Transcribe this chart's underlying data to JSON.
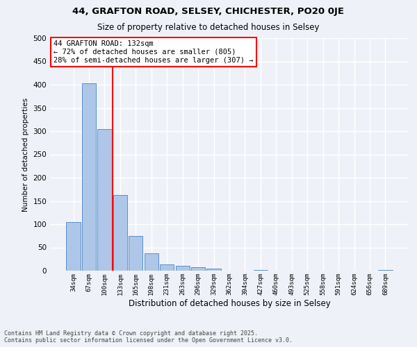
{
  "title_line1": "44, GRAFTON ROAD, SELSEY, CHICHESTER, PO20 0JE",
  "title_line2": "Size of property relative to detached houses in Selsey",
  "xlabel": "Distribution of detached houses by size in Selsey",
  "ylabel": "Number of detached properties",
  "categories": [
    "34sqm",
    "67sqm",
    "100sqm",
    "133sqm",
    "165sqm",
    "198sqm",
    "231sqm",
    "263sqm",
    "296sqm",
    "329sqm",
    "362sqm",
    "394sqm",
    "427sqm",
    "460sqm",
    "493sqm",
    "525sqm",
    "558sqm",
    "591sqm",
    "624sqm",
    "656sqm",
    "689sqm"
  ],
  "values": [
    105,
    403,
    305,
    163,
    75,
    38,
    13,
    11,
    8,
    4,
    0,
    0,
    1,
    0,
    0,
    0,
    0,
    0,
    0,
    0,
    2
  ],
  "bar_color": "#aec6e8",
  "bar_edge_color": "#5b8fc9",
  "vline_color": "red",
  "annotation_text": "44 GRAFTON ROAD: 132sqm\n← 72% of detached houses are smaller (805)\n28% of semi-detached houses are larger (307) →",
  "annotation_box_color": "white",
  "annotation_box_edge": "red",
  "ylim": [
    0,
    500
  ],
  "yticks": [
    0,
    50,
    100,
    150,
    200,
    250,
    300,
    350,
    400,
    450,
    500
  ],
  "background_color": "#eef2f8",
  "grid_color": "white",
  "footer_line1": "Contains HM Land Registry data © Crown copyright and database right 2025.",
  "footer_line2": "Contains public sector information licensed under the Open Government Licence v3.0."
}
